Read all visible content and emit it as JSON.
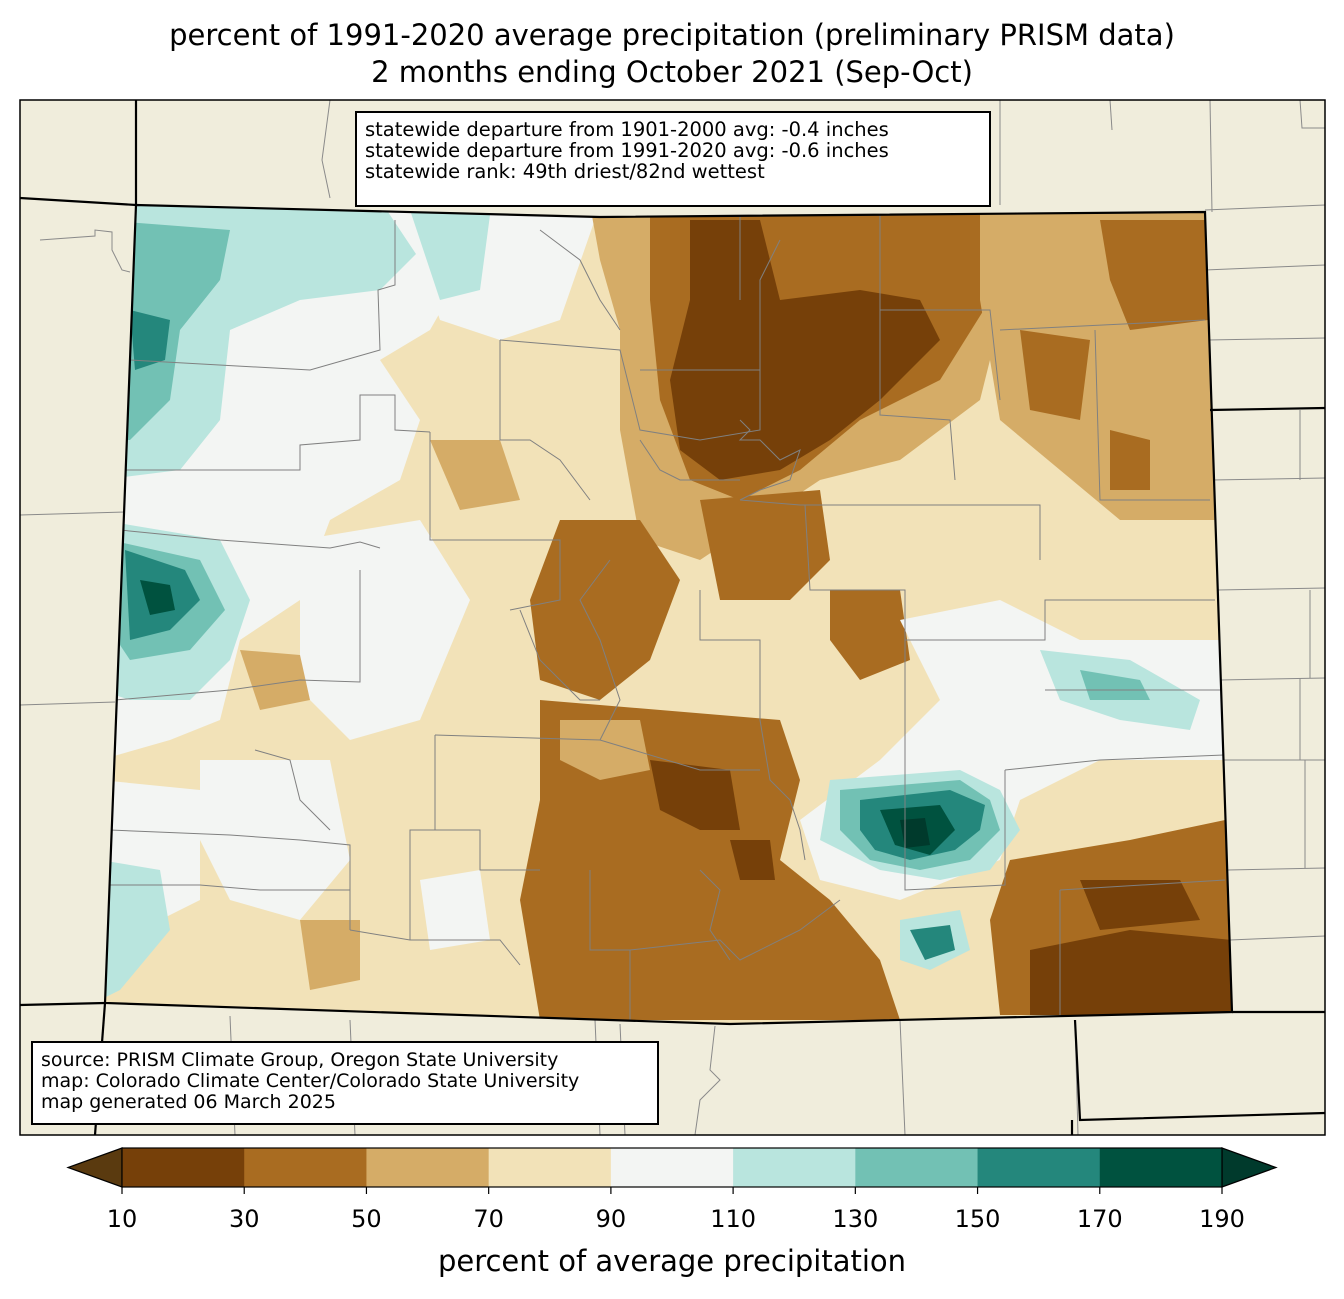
{
  "title_line1": "percent of 1991-2020 average precipitation (preliminary PRISM data)",
  "title_line2": "2 months ending October 2021 (Sep-Oct)",
  "stats": {
    "line1": "statewide departure from 1901-2000 avg: -0.4 inches",
    "line2": "statewide departure from 1991-2020 avg: -0.6 inches",
    "line3": "statewide rank: 49th driest/82nd wettest"
  },
  "source": {
    "line1": "source: PRISM Climate Group, Oregon State University",
    "line2": "map: Colorado Climate Center/Colorado State University",
    "line3": "map generated 06 March 2025"
  },
  "colorbar": {
    "label": "percent of average precipitation",
    "ticks": [
      "10",
      "30",
      "50",
      "70",
      "90",
      "110",
      "130",
      "150",
      "170",
      "190"
    ],
    "colors": [
      "#5a3a0f",
      "#764009",
      "#a96c21",
      "#d5ac67",
      "#f2e2b8",
      "#f3f5f3",
      "#b9e5de",
      "#72c1b4",
      "#24877c",
      "#00523f",
      "#003a2c"
    ],
    "under_color": "#5a3a0f",
    "over_color": "#003a2c"
  },
  "background_color": "#f0eddc"
}
